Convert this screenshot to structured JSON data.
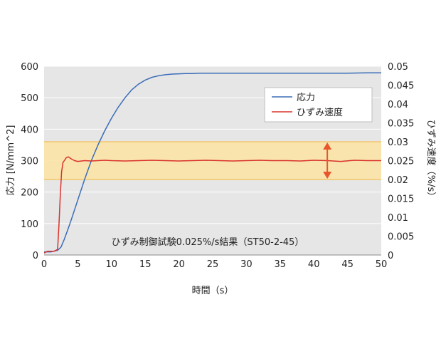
{
  "chart_data": {
    "type": "line",
    "xlabel": "時間（s）",
    "ylabel_left": "応力 [N/mm^2]",
    "ylabel_right": "ひずみ速度（%/s）",
    "xlim": [
      0,
      50
    ],
    "ylim_left": [
      0,
      600
    ],
    "ylim_right": [
      0,
      0.05
    ],
    "x_ticks": [
      "0",
      "5",
      "10",
      "15",
      "20",
      "25",
      "30",
      "35",
      "40",
      "45",
      "50"
    ],
    "y_left_ticks": [
      "0",
      "100",
      "200",
      "300",
      "400",
      "500",
      "600"
    ],
    "y_right_ticks": [
      "0",
      "0.005",
      "0.01",
      "0.015",
      "0.02",
      "0.025",
      "0.03",
      "0.035",
      "0.04",
      "0.045",
      "0.05"
    ],
    "grid": true,
    "legend_position": "top-right",
    "annotation": "ひずみ制御試験0.025%/s結果（ST50-2-45）",
    "band": {
      "axis": "right",
      "y_from": 0.02,
      "y_to": 0.03,
      "color": "#fbe3a2",
      "border_color": "#f3c56b"
    },
    "band_arrow_color": "#e8562a",
    "plot_background": "#e6e6e6",
    "series": [
      {
        "name": "応力",
        "axis": "left",
        "color": "#3b6db8",
        "x": [
          0,
          1,
          2,
          2.5,
          3,
          3.5,
          4,
          5,
          6,
          7,
          8,
          9,
          10,
          11,
          12,
          13,
          14,
          15,
          16,
          17,
          18,
          19,
          20,
          21,
          22,
          23,
          24,
          25,
          30,
          35,
          40,
          45,
          48,
          50
        ],
        "y": [
          10,
          10,
          15,
          25,
          50,
          80,
          110,
          175,
          240,
          300,
          350,
          395,
          435,
          470,
          500,
          525,
          543,
          556,
          565,
          570,
          573,
          575,
          576,
          577,
          577,
          578,
          578,
          578,
          578,
          578,
          578,
          578,
          579,
          579
        ]
      },
      {
        "name": "ひずみ速度",
        "axis": "right",
        "color": "#d9322e",
        "x": [
          0,
          0.5,
          1,
          1.5,
          2,
          2.2,
          2.4,
          2.6,
          2.8,
          3,
          3.3,
          3.6,
          4,
          4.5,
          5,
          6,
          7,
          8,
          9,
          10,
          12,
          14,
          16,
          18,
          20,
          22,
          24,
          26,
          28,
          30,
          32,
          34,
          36,
          38,
          40,
          42,
          44,
          46,
          48,
          50
        ],
        "y": [
          0.0005,
          0.001,
          0.001,
          0.001,
          0.0015,
          0.008,
          0.016,
          0.022,
          0.0245,
          0.025,
          0.0258,
          0.026,
          0.0255,
          0.025,
          0.0248,
          0.025,
          0.0249,
          0.025,
          0.0251,
          0.025,
          0.0249,
          0.025,
          0.0251,
          0.025,
          0.0249,
          0.025,
          0.0251,
          0.025,
          0.0249,
          0.025,
          0.0251,
          0.025,
          0.025,
          0.0249,
          0.0251,
          0.025,
          0.0248,
          0.0251,
          0.025,
          0.025
        ]
      }
    ]
  }
}
